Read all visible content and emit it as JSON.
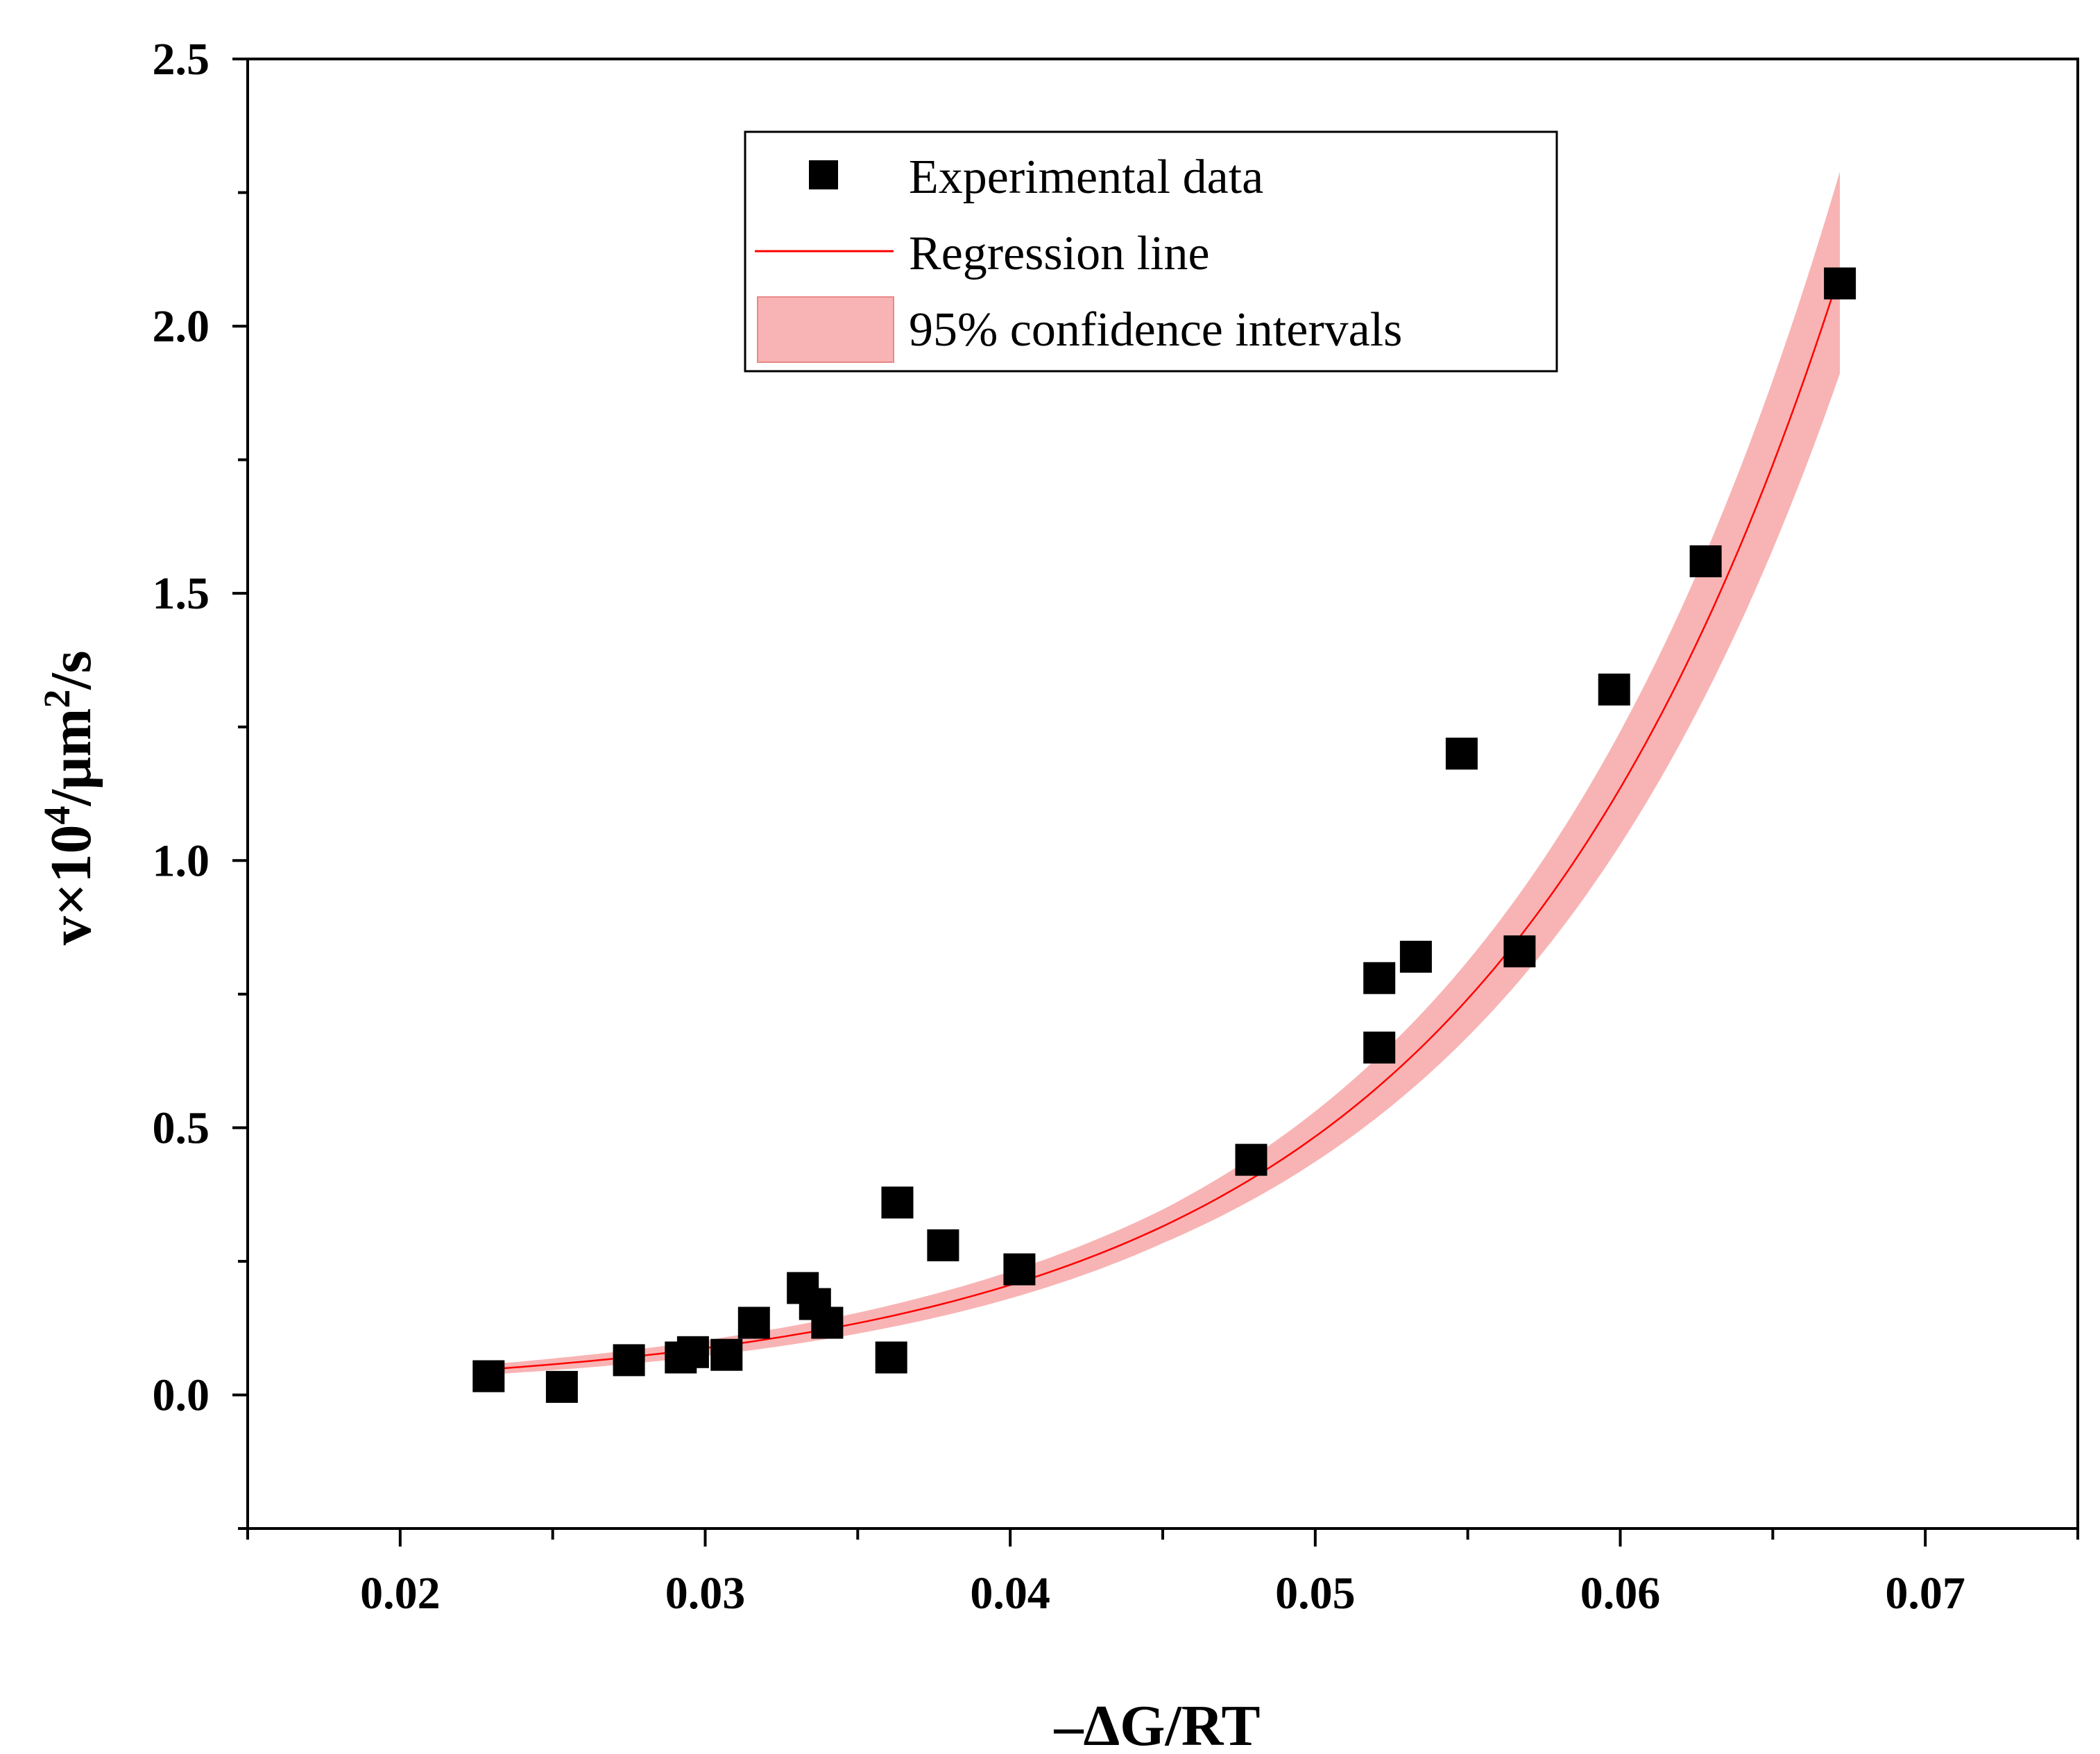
{
  "chart_data": {
    "type": "scatter",
    "title": "",
    "xlabel": "–ΔG/RT",
    "ylabel": {
      "base": "v×10",
      "sup1": "4",
      "mid": "/μm",
      "sup2": "2",
      "end": "/s"
    },
    "xlim": [
      0.015,
      0.075
    ],
    "ylim": [
      -0.25,
      2.5
    ],
    "x_ticks": [
      0.02,
      0.03,
      0.04,
      0.05,
      0.06,
      0.07
    ],
    "x_tick_labels": [
      "0.02",
      "0.03",
      "0.04",
      "0.05",
      "0.06",
      "0.07"
    ],
    "y_ticks": [
      0.0,
      0.5,
      1.0,
      1.5,
      2.0,
      2.5
    ],
    "y_tick_labels": [
      "0.0",
      "0.5",
      "1.0",
      "1.5",
      "2.0",
      "2.5"
    ],
    "grid": false,
    "legend_position": "top-center",
    "series": [
      {
        "name": "Experimental data",
        "kind": "scatter",
        "marker": "square",
        "color": "#000000",
        "points": [
          [
            0.0229,
            0.035
          ],
          [
            0.0253,
            0.015
          ],
          [
            0.0275,
            0.065
          ],
          [
            0.0292,
            0.07
          ],
          [
            0.0296,
            0.08
          ],
          [
            0.0307,
            0.075
          ],
          [
            0.0316,
            0.135
          ],
          [
            0.0332,
            0.2
          ],
          [
            0.0336,
            0.17
          ],
          [
            0.034,
            0.135
          ],
          [
            0.0361,
            0.07
          ],
          [
            0.0363,
            0.36
          ],
          [
            0.0378,
            0.28
          ],
          [
            0.0403,
            0.235
          ],
          [
            0.0479,
            0.44
          ],
          [
            0.0521,
            0.65
          ],
          [
            0.0521,
            0.78
          ],
          [
            0.0533,
            0.82
          ],
          [
            0.0548,
            1.2
          ],
          [
            0.0567,
            0.83
          ],
          [
            0.0598,
            1.32
          ],
          [
            0.0628,
            1.56
          ],
          [
            0.0672,
            2.08
          ]
        ]
      },
      {
        "name": "Regression line",
        "kind": "line",
        "color": "#ff0000",
        "model": "y = a*exp(b*x)",
        "a": 0.00676,
        "b": 85.4,
        "x_range": [
          0.0229,
          0.0672
        ]
      },
      {
        "name": "95% confidence intervals",
        "kind": "band",
        "color": "#f8b4b4",
        "edge_color": "#e88888",
        "relative_halfwidth_at": [
          [
            0.0229,
            0.2
          ],
          [
            0.045,
            0.1
          ],
          [
            0.0672,
            0.09
          ]
        ]
      }
    ]
  }
}
